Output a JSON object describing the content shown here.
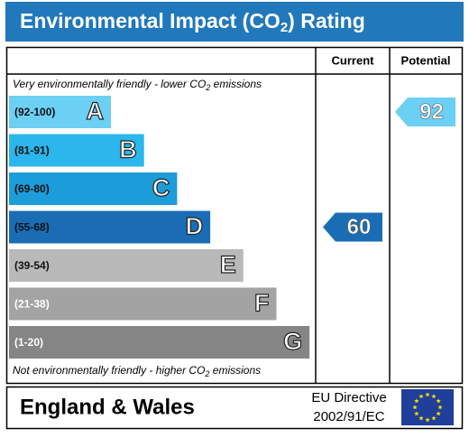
{
  "title": {
    "before": "Environmental Impact (CO",
    "sub": "2",
    "after": ") Rating"
  },
  "columns": {
    "current": "Current",
    "potential": "Potential"
  },
  "top_note": {
    "before": "Very environmentally friendly - lower CO",
    "sub": "2",
    "after": " emissions"
  },
  "bottom_note": {
    "before": "Not environmentally friendly - higher CO",
    "sub": "2",
    "after": " emissions"
  },
  "bands": [
    {
      "range": "(92-100)",
      "letter": "A",
      "color": "#6ccff4",
      "label_color": "#111"
    },
    {
      "range": "(81-91)",
      "letter": "B",
      "color": "#2bb6ec",
      "label_color": "#111"
    },
    {
      "range": "(69-80)",
      "letter": "C",
      "color": "#1c9cd8",
      "label_color": "#111"
    },
    {
      "range": "(55-68)",
      "letter": "D",
      "color": "#1a6db5",
      "label_color": "#111"
    },
    {
      "range": "(39-54)",
      "letter": "E",
      "color": "#b9b9b9",
      "label_color": "#111"
    },
    {
      "range": "(21-38)",
      "letter": "F",
      "color": "#a3a3a3",
      "label_color": "#fff"
    },
    {
      "range": "(1-20)",
      "letter": "G",
      "color": "#858585",
      "label_color": "#fff"
    }
  ],
  "current": 60,
  "potential": 92,
  "footer": {
    "region": "England & Wales",
    "directive_line1": "EU Directive",
    "directive_line2": "2002/91/EC"
  }
}
